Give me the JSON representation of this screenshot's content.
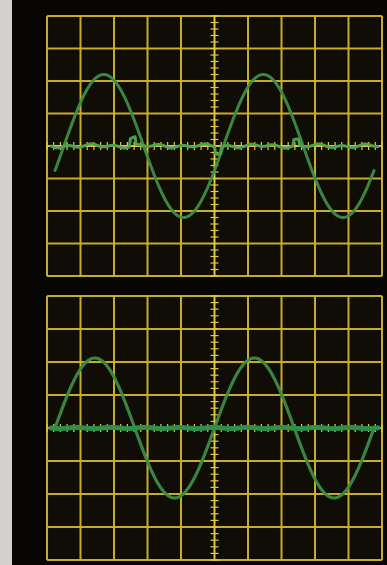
{
  "scene": {
    "subject": "oscilloscope-traces",
    "panels": [
      {
        "id": "top",
        "grid": {
          "columns": 10,
          "rows": 8
        },
        "trace_colors": {
          "sine": "#3f8d45",
          "baseline": "#4fa050"
        },
        "sine_cycles": 2,
        "sine_phase": "starts-at-zero-rising",
        "baseline": "noisy-flat-line-at-center"
      },
      {
        "id": "bottom",
        "grid": {
          "columns": 10,
          "rows": 8
        },
        "trace_colors": {
          "sine": "#3d8a43",
          "baseline": "#2f8f4a"
        },
        "sine_cycles": 2,
        "sine_phase": "starts-at-zero-rising",
        "baseline": "thick-flat-line-at-center"
      }
    ],
    "colors": {
      "background": "#d4d2cd",
      "frame": "#070605",
      "screen": "#100c06",
      "grid": "#cfb52e",
      "graticule_ticks": "#e2ca3d"
    }
  }
}
